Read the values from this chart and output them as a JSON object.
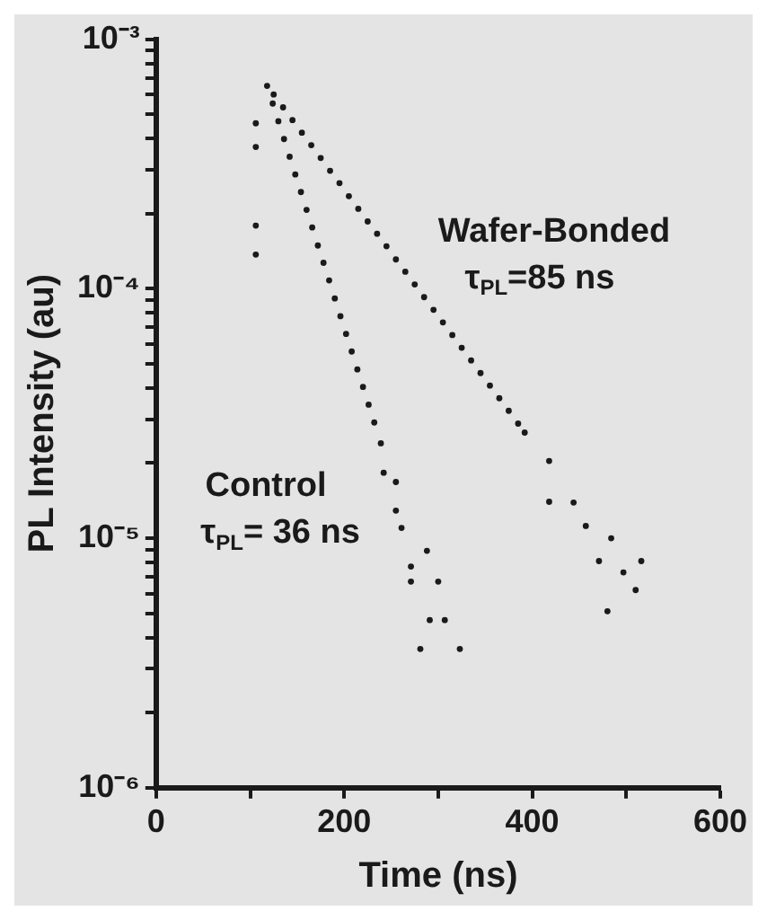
{
  "chart_data": {
    "type": "scatter",
    "xlabel": "Time (ns)",
    "ylabel": "PL Intensity (au)",
    "log": "y",
    "xlim": [
      0,
      600
    ],
    "xticks": [
      0,
      {
        "value": 100,
        "label": null
      },
      200,
      {
        "value": 300,
        "label": null
      },
      400,
      {
        "value": 500,
        "label": null
      },
      600
    ],
    "ylim": [
      1e-06,
      0.001
    ],
    "yticks": [
      {
        "value": 1e-06,
        "label": "10⁻⁶"
      },
      {
        "value": 2e-06,
        "label": null
      },
      {
        "value": 3e-06,
        "label": null
      },
      {
        "value": 4e-06,
        "label": null
      },
      {
        "value": 5e-06,
        "label": null
      },
      {
        "value": 6e-06,
        "label": null
      },
      {
        "value": 7e-06,
        "label": null
      },
      {
        "value": 8e-06,
        "label": null
      },
      {
        "value": 9e-06,
        "label": null
      },
      {
        "value": 1e-05,
        "label": "10⁻⁵"
      },
      {
        "value": 2e-05,
        "label": null
      },
      {
        "value": 3e-05,
        "label": null
      },
      {
        "value": 4e-05,
        "label": null
      },
      {
        "value": 5e-05,
        "label": null
      },
      {
        "value": 6e-05,
        "label": null
      },
      {
        "value": 7e-05,
        "label": null
      },
      {
        "value": 8e-05,
        "label": null
      },
      {
        "value": 9e-05,
        "label": null
      },
      {
        "value": 0.0001,
        "label": "10⁻⁴"
      },
      {
        "value": 0.0002,
        "label": null
      },
      {
        "value": 0.0003,
        "label": null
      },
      {
        "value": 0.0004,
        "label": null
      },
      {
        "value": 0.0005,
        "label": null
      },
      {
        "value": 0.0006,
        "label": null
      },
      {
        "value": 0.0007,
        "label": null
      },
      {
        "value": 0.0008,
        "label": null
      },
      {
        "value": 0.0009,
        "label": null
      },
      {
        "value": 0.001,
        "label": "10⁻³"
      }
    ],
    "grid": false,
    "legend": false,
    "marker": "circle",
    "series": [
      {
        "name": "Wafer-Bonded",
        "color": "#1a1a1a",
        "x": [
          118,
          125,
          135,
          145,
          155,
          165,
          175,
          185,
          195,
          205,
          215,
          225,
          235,
          245,
          255,
          265,
          275,
          285,
          295,
          305,
          315,
          325,
          335,
          345,
          355,
          365,
          375,
          385,
          392,
          418,
          418,
          444,
          457,
          471,
          484,
          497,
          510,
          516,
          480
        ],
        "values": [
          0.00065,
          0.0006,
          0.000533,
          0.000474,
          0.000422,
          0.000376,
          0.000334,
          0.000297,
          0.000265,
          0.000235,
          0.000209,
          0.000186,
          0.000166,
          0.000148,
          0.000131,
          0.000117,
          0.000104,
          9.25e-05,
          8.23e-05,
          7.33e-05,
          6.52e-05,
          5.8e-05,
          5.16e-05,
          4.59e-05,
          4.09e-05,
          3.64e-05,
          3.24e-05,
          2.88e-05,
          2.65e-05,
          2.04e-05,
          1.4e-05,
          1.39e-05,
          1.12e-05,
          8.1e-06,
          1e-05,
          7.3e-06,
          6.2e-06,
          8.1e-06,
          5.1e-06
        ]
      },
      {
        "name": "Control",
        "color": "#1a1a1a",
        "x": [
          106,
          106,
          106,
          106,
          118,
          124,
          130,
          136,
          142,
          148,
          154,
          160,
          166,
          172,
          178,
          184,
          190,
          196,
          202,
          208,
          214,
          220,
          226,
          232,
          239,
          242,
          255,
          255,
          261,
          288,
          271,
          271,
          300,
          291,
          307,
          281,
          323
        ],
        "values": [
          0.00046,
          0.00037,
          0.000179,
          0.000137,
          null,
          0.000552,
          0.000469,
          0.000398,
          0.000338,
          0.000287,
          0.000244,
          0.000207,
          0.000176,
          0.000149,
          0.000127,
          0.000108,
          9.14e-05,
          7.76e-05,
          6.59e-05,
          5.6e-05,
          4.75e-05,
          4.04e-05,
          3.43e-05,
          2.91e-05,
          2.4e-05,
          1.83e-05,
          1.68e-05,
          1.29e-05,
          1.1e-05,
          8.9e-06,
          7.7e-06,
          6.7e-06,
          6.7e-06,
          4.7e-06,
          4.7e-06,
          3.6e-06,
          3.6e-06
        ]
      }
    ],
    "annotations": [
      "τ$_{PL}$=85 ns",
      "τ$_{PL}$= 36 ns"
    ]
  }
}
